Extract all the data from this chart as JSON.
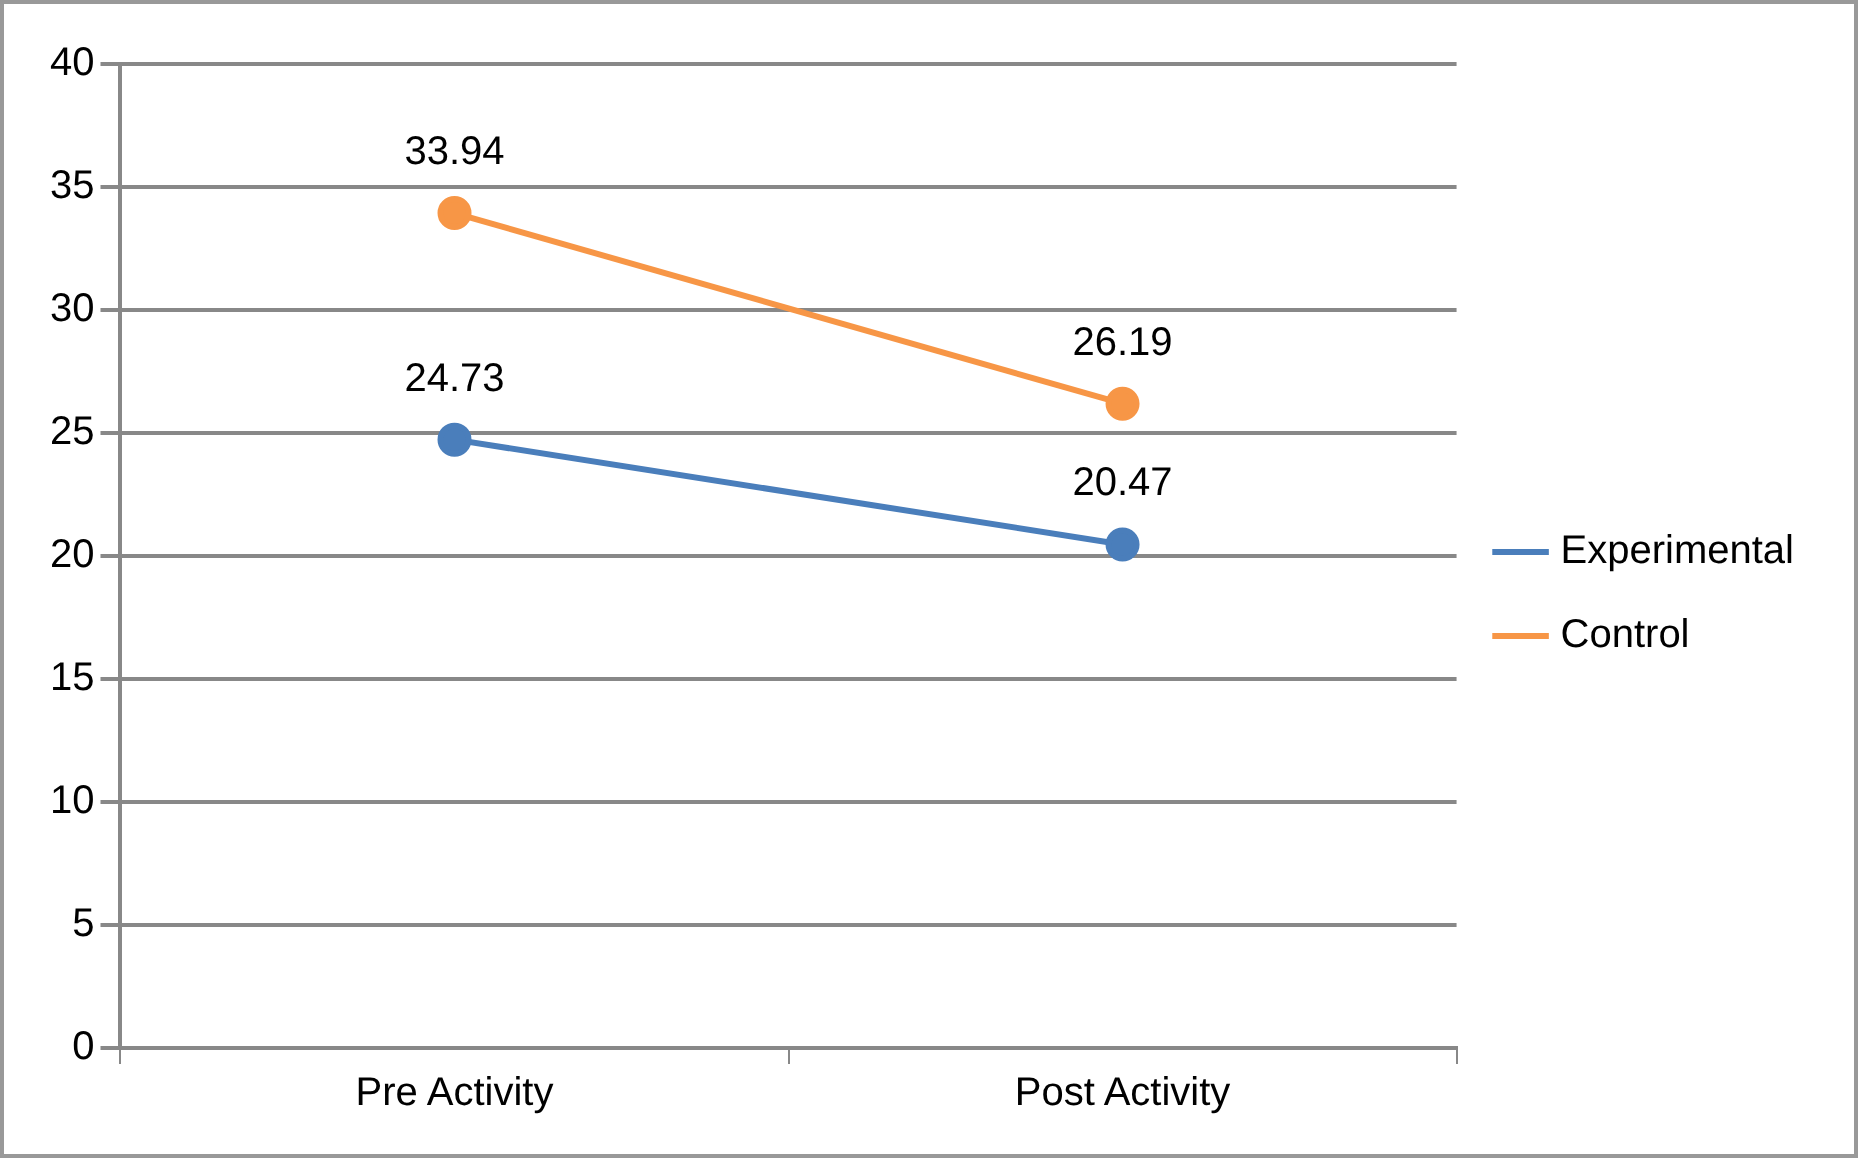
{
  "chart_data": {
    "type": "line",
    "categories": [
      "Pre Activity",
      "Post Activity"
    ],
    "series": [
      {
        "name": "Experimental",
        "color": "#4a7ebb",
        "values": [
          24.73,
          20.47
        ]
      },
      {
        "name": "Control",
        "color": "#f79646",
        "values": [
          33.94,
          26.19
        ]
      }
    ],
    "ylim": [
      0,
      40
    ],
    "yticks": [
      0,
      5,
      10,
      15,
      20,
      25,
      30,
      35,
      40
    ],
    "grid": "y",
    "legend": "right",
    "marker": "circle",
    "line_style": "solid",
    "data_labels": true
  }
}
